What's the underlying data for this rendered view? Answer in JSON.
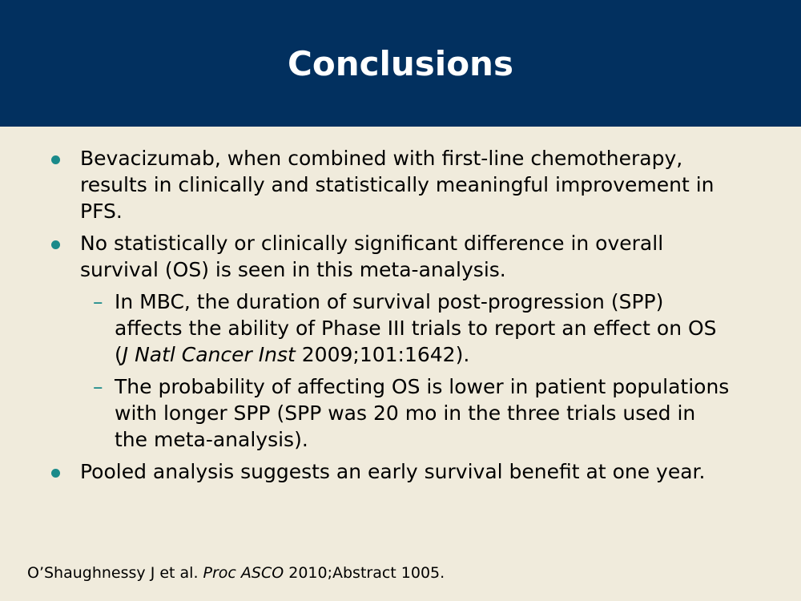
{
  "slide": {
    "title": "Conclusions",
    "bullets": [
      {
        "text": "Bevacizumab, when combined with first-line chemotherapy, results in clinically and statistically meaningful improvement in PFS."
      },
      {
        "text": "No statistically or clinically significant difference in overall survival (OS) is seen in this meta-analysis."
      },
      {
        "text": "Pooled analysis suggests an early survival benefit at one year."
      }
    ],
    "subbullets": [
      {
        "text_before": "In MBC, the duration of survival post-progression (SPP) affects the ability of Phase III trials to report an effect on OS (",
        "italic": "J Natl Cancer Inst",
        "text_after": " 2009;101:1642)."
      },
      {
        "text": "The probability of affecting OS is lower in patient populations with longer SPP (SPP was 20 mo in the three trials used in the meta-analysis)."
      }
    ],
    "dash": "–",
    "footer": {
      "before": "O’Shaughnessy J et al. ",
      "italic": "Proc ASCO",
      "after": " 2010;Abstract 1005."
    }
  },
  "colors": {
    "title_bar": "#02305f",
    "background": "#f0ebdc",
    "bullet": "#1a8a8a"
  }
}
